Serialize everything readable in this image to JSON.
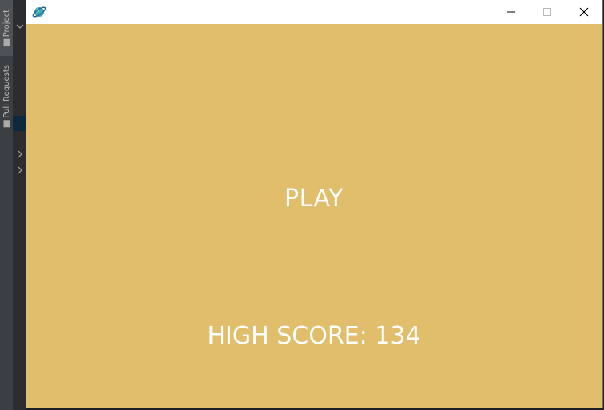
{
  "ide": {
    "project_tab_label": "Project",
    "pull_requests_tab_label": "Pull Requests"
  },
  "window": {
    "app_icon": "planet-icon",
    "buttons": {
      "minimize_icon": "minimize-icon",
      "maximize_icon": "maximize-icon",
      "close_icon": "close-icon"
    }
  },
  "game": {
    "background_color": "#e0be6b",
    "text_color": "#ffffff",
    "play_label": "PLAY",
    "high_score_label": "HIGH SCORE: 134"
  }
}
